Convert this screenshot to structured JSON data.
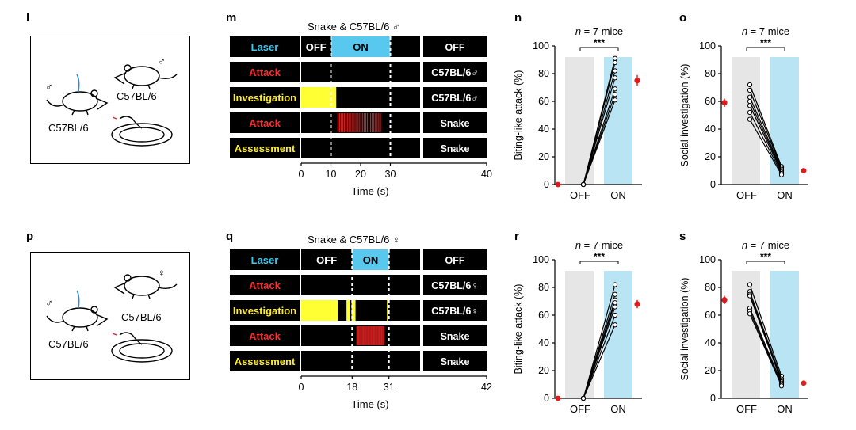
{
  "panel_labels": {
    "l": "l",
    "m": "m",
    "n": "n",
    "o": "o",
    "p": "p",
    "q": "q",
    "r": "r",
    "s": "s"
  },
  "schematic_l": {
    "mouse_left": "C57BL/6",
    "mouse_left_sex": "♂",
    "mouse_right": "C57BL/6",
    "mouse_right_sex": "♂"
  },
  "schematic_p": {
    "mouse_left": "C57BL/6",
    "mouse_left_sex": "♂",
    "mouse_right": "C57BL/6",
    "mouse_right_sex": "♀"
  },
  "raster_m": {
    "title": "Snake & C57BL/6 ♂",
    "xlabel": "Time (s)",
    "ticks": [
      "0",
      "10",
      "20",
      "30",
      "40"
    ],
    "tick_values": [
      0,
      10,
      20,
      30,
      40
    ],
    "xmax": 40,
    "dashes": [
      10,
      30
    ],
    "rows": [
      {
        "label": "Laser",
        "label_color": "#3dc8ee",
        "right": "OFF",
        "segments_text": [
          {
            "t": "OFF",
            "x": [
              0,
              10
            ]
          },
          {
            "t": "ON",
            "x": [
              10,
              30
            ]
          }
        ],
        "fill": [
          {
            "x": [
              10,
              30
            ],
            "color": "#58c8ee"
          }
        ]
      },
      {
        "label": "Attack",
        "label_color": "#ff2a2a",
        "right": "C57BL/6♂",
        "fill": []
      },
      {
        "label": "Investigation",
        "label_color": "#ffee33",
        "right": "C57BL/6♂",
        "fill": [
          {
            "x": [
              0,
              11.8
            ],
            "color": "#ffff33"
          }
        ]
      },
      {
        "label": "Attack",
        "label_color": "#ff2a2a",
        "right": "Snake",
        "fill": [],
        "ticks": {
          "from": 12.2,
          "to": 26.8,
          "step": 0.55,
          "color": "#c81e1e"
        }
      },
      {
        "label": "Assessment",
        "label_color": "#ffee33",
        "right": "Snake",
        "fill": []
      }
    ]
  },
  "raster_q": {
    "title": "Snake & C57BL/6 ♀",
    "xlabel": "Time (s)",
    "ticks": [
      "0",
      "18",
      "31",
      "42"
    ],
    "tick_values": [
      0,
      18,
      31,
      42
    ],
    "xmax": 42,
    "dashes": [
      18,
      31
    ],
    "rows": [
      {
        "label": "Laser",
        "label_color": "#3dc8ee",
        "right": "OFF",
        "segments_text": [
          {
            "t": "OFF",
            "x": [
              0,
              18
            ]
          },
          {
            "t": "ON",
            "x": [
              18,
              31
            ]
          }
        ],
        "fill": [
          {
            "x": [
              18,
              31
            ],
            "color": "#58c8ee"
          }
        ]
      },
      {
        "label": "Attack",
        "label_color": "#ff2a2a",
        "right": "C57BL/6♀",
        "fill": []
      },
      {
        "label": "Investigation",
        "label_color": "#ffee33",
        "right": "C57BL/6♀",
        "fill": [
          {
            "x": [
              0,
              13
            ],
            "color": "#ffff33"
          },
          {
            "x": [
              16,
              17.2
            ],
            "color": "#ffff33"
          },
          {
            "x": [
              17.8,
              19.2
            ],
            "color": "#ffff33"
          },
          {
            "x": [
              30.3,
              30.8
            ],
            "color": "#ffff33"
          }
        ]
      },
      {
        "label": "Attack",
        "label_color": "#ff2a2a",
        "right": "Snake",
        "fill": [],
        "ticks": {
          "from": 19.5,
          "to": 29.2,
          "step": 0.33,
          "color": "#c81e1e"
        }
      },
      {
        "label": "Assessment",
        "label_color": "#ffee33",
        "right": "Snake",
        "fill": []
      }
    ]
  },
  "chart_data": [
    {
      "panel": "n",
      "type": "line",
      "title": "n = 7 mice",
      "significance": "***",
      "ylabel": "Biting-like attack (%)",
      "categories": [
        "OFF",
        "ON"
      ],
      "ylim": [
        0,
        100
      ],
      "yticks": [
        0,
        20,
        40,
        60,
        80,
        100
      ],
      "on_shade": "#b8e4f4",
      "off_shade": "#e6e6e6",
      "series": [
        {
          "values": [
            0,
            91
          ]
        },
        {
          "values": [
            0,
            88
          ]
        },
        {
          "values": [
            0,
            82
          ]
        },
        {
          "values": [
            0,
            77
          ]
        },
        {
          "values": [
            0,
            69
          ]
        },
        {
          "values": [
            0,
            65
          ]
        },
        {
          "values": [
            0,
            61
          ]
        }
      ],
      "mean": {
        "side": "ON",
        "value": 75,
        "err": 4
      },
      "mean_off": {
        "value": 0
      }
    },
    {
      "panel": "o",
      "type": "line",
      "title": "n = 7 mice",
      "significance": "***",
      "ylabel": "Social investigation (%)",
      "categories": [
        "OFF",
        "ON"
      ],
      "ylim": [
        0,
        100
      ],
      "yticks": [
        0,
        20,
        40,
        60,
        80,
        100
      ],
      "on_shade": "#b8e4f4",
      "off_shade": "#e6e6e6",
      "series": [
        {
          "values": [
            72,
            13
          ]
        },
        {
          "values": [
            68,
            12
          ]
        },
        {
          "values": [
            63,
            11
          ]
        },
        {
          "values": [
            60,
            10
          ]
        },
        {
          "values": [
            57,
            9
          ]
        },
        {
          "values": [
            52,
            8
          ]
        },
        {
          "values": [
            47,
            7
          ]
        }
      ],
      "mean": {
        "side": "OFF",
        "value": 59,
        "err": 3
      },
      "mean_on": {
        "value": 10
      }
    },
    {
      "panel": "r",
      "type": "line",
      "title": "n = 7 mice",
      "significance": "***",
      "ylabel": "Biting-like attack (%)",
      "categories": [
        "OFF",
        "ON"
      ],
      "ylim": [
        0,
        100
      ],
      "yticks": [
        0,
        20,
        40,
        60,
        80,
        100
      ],
      "on_shade": "#b8e4f4",
      "off_shade": "#e6e6e6",
      "series": [
        {
          "values": [
            0,
            82
          ]
        },
        {
          "values": [
            0,
            75
          ]
        },
        {
          "values": [
            0,
            71
          ]
        },
        {
          "values": [
            0,
            69
          ]
        },
        {
          "values": [
            0,
            66
          ]
        },
        {
          "values": [
            0,
            60
          ]
        },
        {
          "values": [
            0,
            53
          ]
        }
      ],
      "mean": {
        "side": "ON",
        "value": 68,
        "err": 3
      },
      "mean_off": {
        "value": 0
      }
    },
    {
      "panel": "s",
      "type": "line",
      "title": "n = 7 mice",
      "significance": "***",
      "ylabel": "Social investigation (%)",
      "categories": [
        "OFF",
        "ON"
      ],
      "ylim": [
        0,
        100
      ],
      "yticks": [
        0,
        20,
        40,
        60,
        80,
        100
      ],
      "on_shade": "#b8e4f4",
      "off_shade": "#e6e6e6",
      "series": [
        {
          "values": [
            82,
            16
          ]
        },
        {
          "values": [
            77,
            14
          ]
        },
        {
          "values": [
            75,
            13
          ]
        },
        {
          "values": [
            74,
            12
          ]
        },
        {
          "values": [
            65,
            11
          ]
        },
        {
          "values": [
            63,
            10
          ]
        },
        {
          "values": [
            61,
            9
          ]
        }
      ],
      "mean": {
        "side": "OFF",
        "value": 71,
        "err": 3
      },
      "mean_on": {
        "value": 11
      }
    }
  ]
}
